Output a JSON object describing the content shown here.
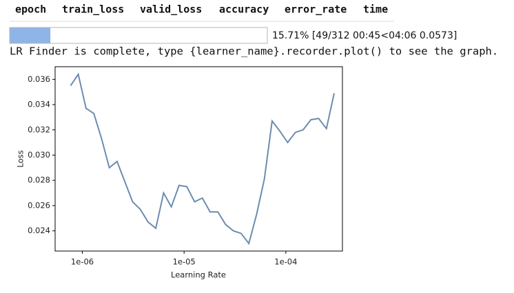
{
  "table_header": [
    "epoch",
    "train_loss",
    "valid_loss",
    "accuracy",
    "error_rate",
    "time"
  ],
  "progress": {
    "percent": 15.71,
    "label": "15.71% [49/312 00:45<04:06 0.0573]"
  },
  "output_text": "LR Finder is complete, type {learner_name}.recorder.plot() to see the graph.",
  "chart_data": {
    "type": "line",
    "xlabel": "Learning Rate",
    "ylabel": "Loss",
    "xscale": "log",
    "x": [
      7.66e-07,
      9.12e-07,
      1.087e-06,
      1.296e-06,
      1.545e-06,
      1.841e-06,
      2.193e-06,
      2.614e-06,
      3.116e-06,
      3.714e-06,
      4.426e-06,
      5.27e-06,
      6.29e-06,
      7.49e-06,
      8.93e-06,
      1.064e-05,
      1.268e-05,
      1.511e-05,
      1.802e-05,
      2.147e-05,
      2.559e-05,
      3.05e-05,
      3.63e-05,
      4.33e-05,
      5.16e-05,
      6.15e-05,
      7.33e-05,
      8.73e-05,
      0.0001042,
      0.0001242,
      0.0001479,
      0.0001762,
      0.00021,
      0.0002506,
      0.0002985
    ],
    "series": [
      {
        "name": "loss",
        "color": "#6b8cb0",
        "values": [
          0.0355,
          0.0364,
          0.0337,
          0.0333,
          0.0313,
          0.029,
          0.0295,
          0.0279,
          0.0263,
          0.0257,
          0.0247,
          0.0242,
          0.027,
          0.0259,
          0.0276,
          0.0275,
          0.0263,
          0.0266,
          0.0255,
          0.0255,
          0.0245,
          0.024,
          0.0238,
          0.023,
          0.0253,
          0.0281,
          0.0327,
          0.0319,
          0.031,
          0.0318,
          0.032,
          0.0328,
          0.0329,
          0.0321,
          0.0349
        ]
      }
    ],
    "xlim": [
      5.4e-07,
      0.00036
    ],
    "ylim": [
      0.0224,
      0.037
    ],
    "xticks": [
      {
        "value": 1e-06,
        "label": "1e-06"
      },
      {
        "value": 1e-05,
        "label": "1e-05"
      },
      {
        "value": 0.0001,
        "label": "1e-04"
      }
    ],
    "yticks": [
      0.024,
      0.026,
      0.028,
      {
        "value": 0.03,
        "label": "0.030"
      },
      0.032,
      0.034,
      0.036
    ]
  }
}
